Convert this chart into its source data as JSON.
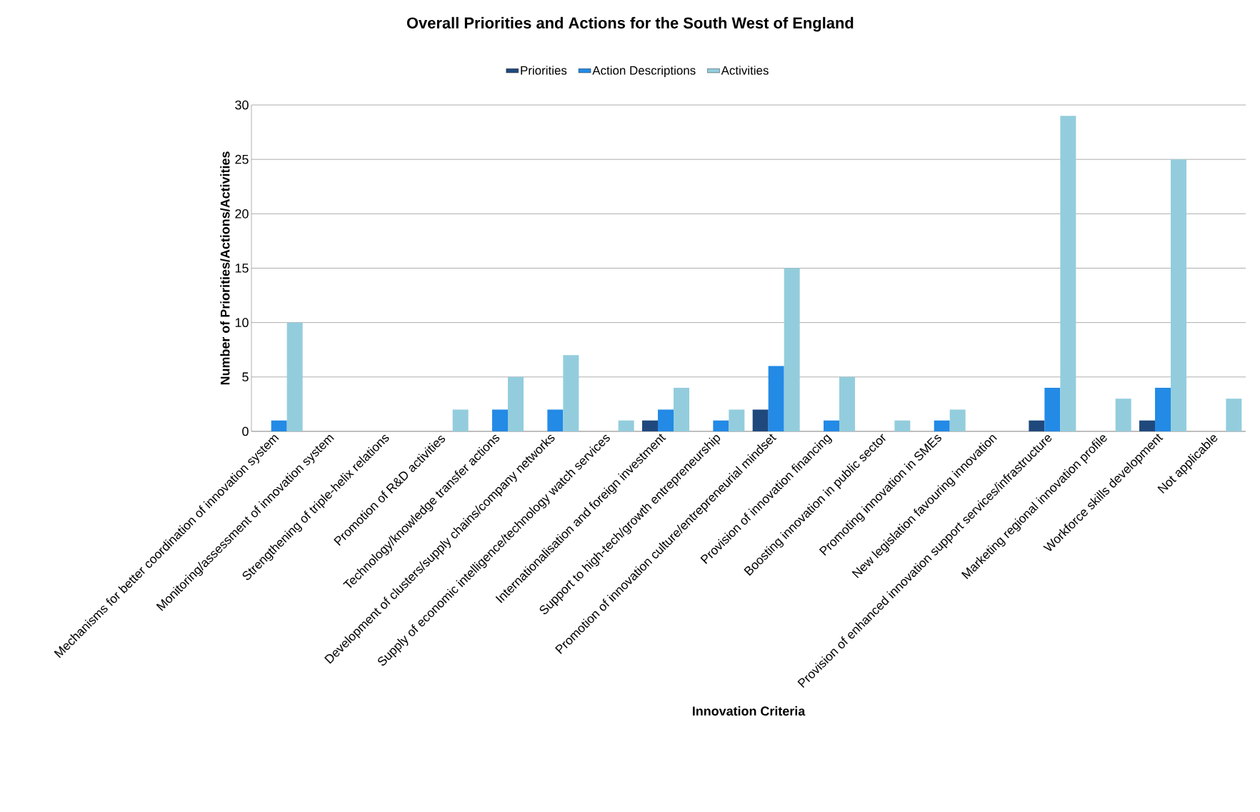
{
  "chart_data": {
    "type": "bar",
    "title": "Overall Priorities and Actions for the South West of England",
    "xlabel": "Innovation Criteria",
    "ylabel": "Number of Priorities/Actions/Activities",
    "categories": [
      "Mechanisms for better coordination of innovation system",
      "Monitoring/assessment of innovation system",
      "Strengthening of triple-helix relations",
      "Promotion of R&D activities",
      "Technology/knowledge transfer actions",
      "Development of clusters/supply chains/company networks",
      "Supply of economic intelligence/technology watch services",
      "Internationalisation and foreign investment",
      "Support to high-tech/growth entrepreneurship",
      "Promotion of innovation culture/entrepreneurial mindset",
      "Provision of innovation financing",
      "Boosting innovation in public sector",
      "Promoting innovation in SMEs",
      "New legislation favouring innovation",
      "Provision of enhanced innovation support services/infrastructure",
      "Marketing regional innovation profile",
      "Workforce skills development",
      "Not applicable"
    ],
    "series": [
      {
        "name": "Priorities",
        "color": "#1f497d",
        "values": [
          0,
          0,
          0,
          0,
          0,
          0,
          0,
          1,
          0,
          2,
          0,
          0,
          0,
          0,
          1,
          0,
          1,
          0
        ]
      },
      {
        "name": "Action Descriptions",
        "color": "#238ae6",
        "values": [
          1,
          0,
          0,
          0,
          2,
          2,
          0,
          2,
          1,
          6,
          1,
          0,
          1,
          0,
          4,
          0,
          4,
          0
        ]
      },
      {
        "name": "Activities",
        "color": "#93cddd",
        "values": [
          10,
          0,
          0,
          2,
          5,
          7,
          1,
          4,
          2,
          15,
          5,
          1,
          2,
          0,
          29,
          3,
          25,
          3
        ]
      }
    ],
    "ylim": [
      0,
      30
    ],
    "yticks": [
      0,
      5,
      10,
      15,
      20,
      25,
      30
    ],
    "grid": "y",
    "legend": "top"
  }
}
